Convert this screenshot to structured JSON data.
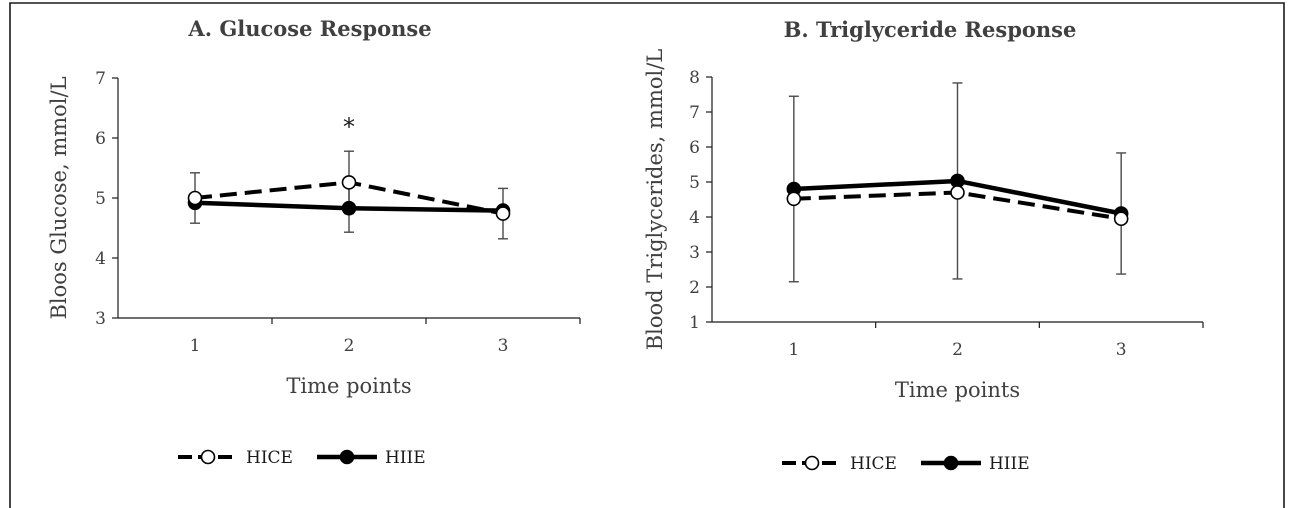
{
  "chart_data": [
    {
      "type": "line",
      "title": "A. Glucose Response",
      "xlabel": "Time points",
      "ylabel": "Bloos Glucose, mmol/L",
      "categories": [
        "1",
        "2",
        "3"
      ],
      "yticks": [
        "3",
        "4",
        "5",
        "6",
        "7"
      ],
      "ylim": [
        3,
        7
      ],
      "grid": false,
      "legend": "bottom",
      "annotations": [
        {
          "text": "*",
          "category": "2"
        }
      ],
      "series": [
        {
          "name": "HICE",
          "style": "dashed",
          "marker": "open-circle",
          "values": [
            5.0,
            5.26,
            4.74
          ],
          "error": [
            0.42,
            0.52,
            0.42
          ]
        },
        {
          "name": "HIIE",
          "style": "solid",
          "marker": "filled-circle",
          "values": [
            4.92,
            4.83,
            4.79
          ],
          "error": [
            null,
            0.4,
            null
          ]
        }
      ]
    },
    {
      "type": "line",
      "title": "B. Triglyceride Response",
      "xlabel": "Time points",
      "ylabel": "Blood Triglycerides, mmol/L",
      "categories": [
        "1",
        "2",
        "3"
      ],
      "yticks": [
        "1",
        "2",
        "3",
        "4",
        "5",
        "6",
        "7",
        "8"
      ],
      "ylim": [
        1,
        8
      ],
      "grid": false,
      "legend": "bottom",
      "series": [
        {
          "name": "HICE",
          "style": "dashed",
          "marker": "open-circle",
          "values": [
            4.52,
            4.7,
            3.95
          ],
          "error": [
            null,
            null,
            null
          ]
        },
        {
          "name": "HIIE",
          "style": "solid",
          "marker": "filled-circle",
          "values": [
            4.8,
            5.03,
            4.1
          ],
          "error": [
            2.65,
            2.8,
            1.73
          ]
        }
      ]
    }
  ],
  "colors": {
    "line": "#000000",
    "text": "#404040",
    "errorbar": "#4a4a4a"
  }
}
